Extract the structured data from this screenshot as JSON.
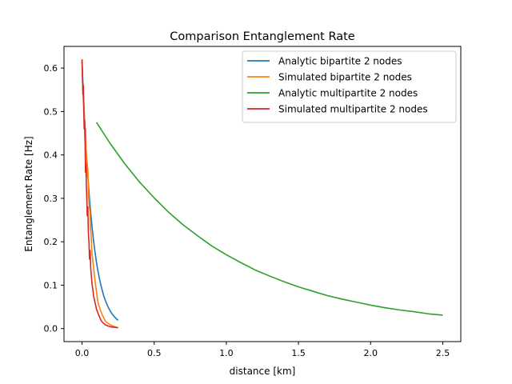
{
  "chart_data": {
    "type": "line",
    "title": "Comparison Entanglement Rate",
    "xlabel": "distance [km]",
    "ylabel": "Entanglement Rate [Hz]",
    "xlim": [
      -0.125,
      2.625
    ],
    "ylim": [
      -0.03,
      0.65
    ],
    "xticks": [
      0.0,
      0.5,
      1.0,
      1.5,
      2.0,
      2.5
    ],
    "xtick_labels": [
      "0.0",
      "0.5",
      "1.0",
      "1.5",
      "2.0",
      "2.5"
    ],
    "yticks": [
      0.0,
      0.1,
      0.2,
      0.3,
      0.4,
      0.5,
      0.6
    ],
    "ytick_labels": [
      "0.0",
      "0.1",
      "0.2",
      "0.3",
      "0.4",
      "0.5",
      "0.6"
    ],
    "grid": false,
    "legend_position": "top-right",
    "series": [
      {
        "name": "Analytic bipartite 2 nodes",
        "color": "#1f77b4",
        "x": [
          0.0,
          0.01,
          0.02,
          0.03,
          0.04,
          0.05,
          0.06,
          0.07,
          0.08,
          0.09,
          0.1,
          0.11,
          0.12,
          0.13,
          0.14,
          0.15,
          0.16,
          0.17,
          0.18,
          0.19,
          0.2,
          0.21,
          0.22,
          0.23,
          0.24,
          0.25
        ],
        "y": [
          0.615,
          0.535,
          0.466,
          0.405,
          0.353,
          0.307,
          0.267,
          0.232,
          0.202,
          0.176,
          0.153,
          0.133,
          0.116,
          0.101,
          0.088,
          0.076,
          0.066,
          0.058,
          0.05,
          0.044,
          0.038,
          0.033,
          0.029,
          0.025,
          0.022,
          0.019
        ]
      },
      {
        "name": "Simulated bipartite 2 nodes",
        "color": "#ff7f0e",
        "x": [
          0.0,
          0.005,
          0.01,
          0.015,
          0.02,
          0.025,
          0.03,
          0.035,
          0.04,
          0.045,
          0.05,
          0.055,
          0.06,
          0.065,
          0.07,
          0.08,
          0.09,
          0.1,
          0.11,
          0.12,
          0.13,
          0.14,
          0.15,
          0.16,
          0.18,
          0.2,
          0.22,
          0.25
        ],
        "y": [
          0.62,
          0.55,
          0.52,
          0.5,
          0.44,
          0.46,
          0.4,
          0.35,
          0.37,
          0.31,
          0.28,
          0.27,
          0.23,
          0.2,
          0.17,
          0.14,
          0.11,
          0.085,
          0.06,
          0.05,
          0.04,
          0.032,
          0.025,
          0.018,
          0.012,
          0.008,
          0.005,
          0.002
        ]
      },
      {
        "name": "Analytic multipartite 2 nodes",
        "color": "#2ca02c",
        "x": [
          0.1,
          0.2,
          0.3,
          0.4,
          0.5,
          0.6,
          0.7,
          0.8,
          0.9,
          1.0,
          1.1,
          1.2,
          1.3,
          1.4,
          1.5,
          1.6,
          1.7,
          1.8,
          1.9,
          2.0,
          2.1,
          2.2,
          2.3,
          2.4,
          2.5
        ],
        "y": [
          0.475,
          0.424,
          0.378,
          0.337,
          0.301,
          0.268,
          0.239,
          0.214,
          0.19,
          0.17,
          0.152,
          0.135,
          0.121,
          0.108,
          0.096,
          0.086,
          0.076,
          0.068,
          0.061,
          0.054,
          0.048,
          0.043,
          0.039,
          0.034,
          0.031
        ]
      },
      {
        "name": "Simulated multipartite 2 nodes",
        "color": "#d62728",
        "x": [
          0.0,
          0.003,
          0.006,
          0.009,
          0.012,
          0.015,
          0.018,
          0.021,
          0.024,
          0.027,
          0.03,
          0.033,
          0.036,
          0.04,
          0.044,
          0.048,
          0.052,
          0.056,
          0.06,
          0.065,
          0.07,
          0.075,
          0.08,
          0.09,
          0.1,
          0.11,
          0.12,
          0.13,
          0.14,
          0.15,
          0.16,
          0.18,
          0.2,
          0.22,
          0.25
        ],
        "y": [
          0.62,
          0.58,
          0.54,
          0.56,
          0.5,
          0.46,
          0.48,
          0.43,
          0.36,
          0.38,
          0.33,
          0.3,
          0.26,
          0.28,
          0.22,
          0.2,
          0.16,
          0.18,
          0.14,
          0.12,
          0.1,
          0.09,
          0.075,
          0.06,
          0.045,
          0.036,
          0.028,
          0.02,
          0.015,
          0.012,
          0.009,
          0.006,
          0.004,
          0.003,
          0.002
        ]
      }
    ]
  }
}
